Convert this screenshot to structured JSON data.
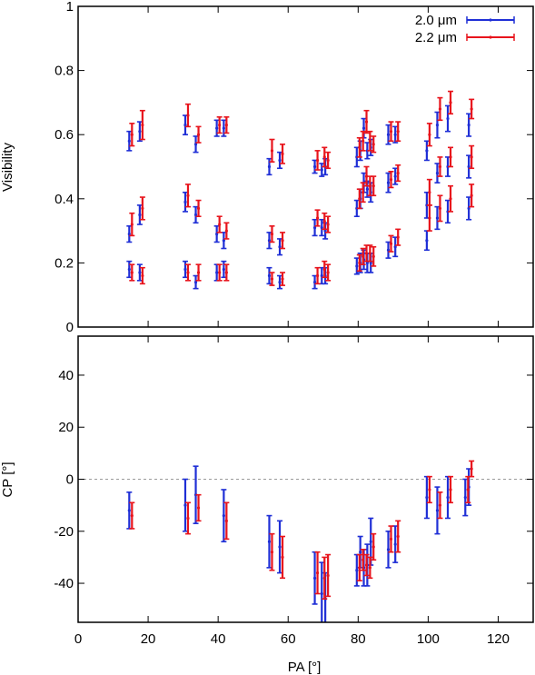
{
  "colors": {
    "series_2_0": "#1f2fd6",
    "series_2_2": "#e8141c",
    "frame": "#000000",
    "zero_line": "#9a9a9a"
  },
  "chart_data": [
    {
      "type": "scatter",
      "panel": "top",
      "ylabel": "Visibility",
      "xlabel": "",
      "xlim": [
        0,
        130
      ],
      "ylim": [
        0,
        1
      ],
      "xticks": [
        0,
        20,
        40,
        60,
        80,
        100,
        120
      ],
      "yticks": [
        0,
        0.2,
        0.4,
        0.6,
        0.8,
        1
      ],
      "ytick_labels": [
        "0",
        "0.2",
        "0.4",
        "0.6",
        "0.8",
        "1"
      ],
      "legend_position": "top-right",
      "error_bars": true,
      "series": [
        {
          "name": "2.0 μm",
          "color": "#1f2fd6",
          "points": [
            [
              15,
              0.58,
              0.03
            ],
            [
              15,
              0.29,
              0.025
            ],
            [
              15,
              0.18,
              0.025
            ],
            [
              18,
              0.61,
              0.03
            ],
            [
              18,
              0.35,
              0.03
            ],
            [
              18,
              0.17,
              0.025
            ],
            [
              31,
              0.63,
              0.03
            ],
            [
              31,
              0.39,
              0.03
            ],
            [
              31,
              0.18,
              0.025
            ],
            [
              34,
              0.57,
              0.025
            ],
            [
              34,
              0.35,
              0.025
            ],
            [
              34,
              0.14,
              0.02
            ],
            [
              40,
              0.62,
              0.025
            ],
            [
              40,
              0.29,
              0.025
            ],
            [
              40,
              0.17,
              0.025
            ],
            [
              42,
              0.62,
              0.025
            ],
            [
              42,
              0.27,
              0.025
            ],
            [
              42,
              0.18,
              0.025
            ],
            [
              55,
              0.5,
              0.025
            ],
            [
              55,
              0.27,
              0.025
            ],
            [
              55,
              0.16,
              0.025
            ],
            [
              58,
              0.52,
              0.025
            ],
            [
              58,
              0.25,
              0.025
            ],
            [
              58,
              0.14,
              0.02
            ],
            [
              68,
              0.5,
              0.02
            ],
            [
              68,
              0.31,
              0.025
            ],
            [
              68,
              0.14,
              0.02
            ],
            [
              70,
              0.49,
              0.02
            ],
            [
              70,
              0.31,
              0.025
            ],
            [
              70,
              0.16,
              0.025
            ],
            [
              71,
              0.5,
              0.025
            ],
            [
              71,
              0.3,
              0.025
            ],
            [
              71,
              0.16,
              0.025
            ],
            [
              80,
              0.53,
              0.03
            ],
            [
              80,
              0.37,
              0.025
            ],
            [
              80,
              0.19,
              0.025
            ],
            [
              81,
              0.55,
              0.03
            ],
            [
              81,
              0.4,
              0.03
            ],
            [
              81,
              0.2,
              0.03
            ],
            [
              82,
              0.62,
              0.03
            ],
            [
              82,
              0.45,
              0.03
            ],
            [
              82,
              0.21,
              0.03
            ],
            [
              83,
              0.55,
              0.025
            ],
            [
              83,
              0.43,
              0.025
            ],
            [
              83,
              0.2,
              0.03
            ],
            [
              84,
              0.56,
              0.025
            ],
            [
              84,
              0.42,
              0.03
            ],
            [
              84,
              0.2,
              0.03
            ],
            [
              89,
              0.6,
              0.03
            ],
            [
              89,
              0.45,
              0.03
            ],
            [
              89,
              0.24,
              0.025
            ],
            [
              91,
              0.6,
              0.025
            ],
            [
              91,
              0.47,
              0.025
            ],
            [
              91,
              0.25,
              0.03
            ],
            [
              100,
              0.55,
              0.03
            ],
            [
              100,
              0.38,
              0.04
            ],
            [
              100,
              0.27,
              0.03
            ],
            [
              103,
              0.63,
              0.04
            ],
            [
              103,
              0.48,
              0.03
            ],
            [
              103,
              0.34,
              0.035
            ],
            [
              106,
              0.65,
              0.04
            ],
            [
              106,
              0.5,
              0.03
            ],
            [
              106,
              0.36,
              0.035
            ],
            [
              112,
              0.63,
              0.035
            ],
            [
              112,
              0.5,
              0.035
            ],
            [
              112,
              0.37,
              0.035
            ]
          ]
        },
        {
          "name": "2.2 μm",
          "color": "#e8141c",
          "points": [
            [
              15,
              0.6,
              0.035
            ],
            [
              15,
              0.32,
              0.035
            ],
            [
              15,
              0.17,
              0.025
            ],
            [
              18,
              0.63,
              0.045
            ],
            [
              18,
              0.37,
              0.035
            ],
            [
              18,
              0.16,
              0.025
            ],
            [
              31,
              0.66,
              0.035
            ],
            [
              31,
              0.41,
              0.035
            ],
            [
              31,
              0.17,
              0.025
            ],
            [
              34,
              0.6,
              0.025
            ],
            [
              34,
              0.37,
              0.025
            ],
            [
              34,
              0.17,
              0.025
            ],
            [
              40,
              0.63,
              0.025
            ],
            [
              40,
              0.32,
              0.025
            ],
            [
              40,
              0.17,
              0.025
            ],
            [
              42,
              0.63,
              0.025
            ],
            [
              42,
              0.3,
              0.025
            ],
            [
              42,
              0.17,
              0.025
            ],
            [
              55,
              0.55,
              0.035
            ],
            [
              55,
              0.29,
              0.025
            ],
            [
              55,
              0.15,
              0.02
            ],
            [
              58,
              0.54,
              0.03
            ],
            [
              58,
              0.27,
              0.025
            ],
            [
              58,
              0.15,
              0.02
            ],
            [
              68,
              0.52,
              0.03
            ],
            [
              68,
              0.34,
              0.025
            ],
            [
              68,
              0.16,
              0.025
            ],
            [
              70,
              0.53,
              0.03
            ],
            [
              70,
              0.33,
              0.025
            ],
            [
              70,
              0.18,
              0.025
            ],
            [
              71,
              0.52,
              0.025
            ],
            [
              71,
              0.32,
              0.025
            ],
            [
              71,
              0.17,
              0.025
            ],
            [
              80,
              0.56,
              0.03
            ],
            [
              80,
              0.4,
              0.03
            ],
            [
              80,
              0.2,
              0.025
            ],
            [
              81,
              0.58,
              0.03
            ],
            [
              81,
              0.42,
              0.03
            ],
            [
              81,
              0.22,
              0.025
            ],
            [
              82,
              0.64,
              0.035
            ],
            [
              82,
              0.47,
              0.03
            ],
            [
              82,
              0.23,
              0.025
            ],
            [
              83,
              0.58,
              0.03
            ],
            [
              83,
              0.44,
              0.03
            ],
            [
              83,
              0.23,
              0.025
            ],
            [
              84,
              0.57,
              0.025
            ],
            [
              84,
              0.44,
              0.03
            ],
            [
              84,
              0.22,
              0.03
            ],
            [
              89,
              0.61,
              0.03
            ],
            [
              89,
              0.46,
              0.025
            ],
            [
              89,
              0.26,
              0.025
            ],
            [
              91,
              0.61,
              0.03
            ],
            [
              91,
              0.48,
              0.025
            ],
            [
              91,
              0.28,
              0.025
            ],
            [
              100,
              0.6,
              0.035
            ],
            [
              100,
              0.42,
              0.04
            ],
            [
              100,
              0.34,
              0.04
            ],
            [
              103,
              0.68,
              0.035
            ],
            [
              103,
              0.5,
              0.03
            ],
            [
              103,
              0.37,
              0.04
            ],
            [
              106,
              0.7,
              0.035
            ],
            [
              106,
              0.53,
              0.03
            ],
            [
              106,
              0.4,
              0.04
            ],
            [
              112,
              0.68,
              0.03
            ],
            [
              112,
              0.53,
              0.035
            ],
            [
              112,
              0.41,
              0.035
            ]
          ]
        }
      ]
    },
    {
      "type": "scatter",
      "panel": "bottom",
      "ylabel": "CP [°]",
      "xlabel": "PA [°]",
      "xlim": [
        0,
        130
      ],
      "ylim": [
        -55,
        55
      ],
      "xticks": [
        0,
        20,
        40,
        60,
        80,
        100,
        120
      ],
      "yticks": [
        -40,
        -20,
        0,
        20,
        40
      ],
      "ytick_labels": [
        "-40",
        "-20",
        "0",
        "20",
        "40"
      ],
      "zero_line": true,
      "error_bars": true,
      "series": [
        {
          "name": "2.0 μm",
          "color": "#1f2fd6",
          "points": [
            [
              15,
              -12,
              7
            ],
            [
              31,
              -10,
              10
            ],
            [
              34,
              -6,
              11
            ],
            [
              42,
              -14,
              10
            ],
            [
              55,
              -24,
              10
            ],
            [
              58,
              -26,
              10
            ],
            [
              68,
              -38,
              10
            ],
            [
              70,
              -44,
              12
            ],
            [
              71,
              -46,
              10
            ],
            [
              80,
              -35,
              6
            ],
            [
              81,
              -28,
              6
            ],
            [
              82,
              -34,
              7
            ],
            [
              83,
              -33,
              8
            ],
            [
              84,
              -24,
              9
            ],
            [
              89,
              -27,
              7
            ],
            [
              91,
              -25,
              7
            ],
            [
              100,
              -7,
              8
            ],
            [
              103,
              -12,
              9
            ],
            [
              106,
              -7,
              8
            ],
            [
              111,
              -7,
              7
            ],
            [
              112,
              -3,
              7
            ]
          ]
        },
        {
          "name": "2.2 μm",
          "color": "#e8141c",
          "points": [
            [
              15,
              -14,
              5
            ],
            [
              31,
              -15,
              6
            ],
            [
              34,
              -11,
              5
            ],
            [
              42,
              -16,
              7
            ],
            [
              55,
              -28,
              7
            ],
            [
              58,
              -30,
              8
            ],
            [
              68,
              -36,
              8
            ],
            [
              70,
              -38,
              8
            ],
            [
              71,
              -37,
              8
            ],
            [
              80,
              -34,
              5
            ],
            [
              81,
              -31,
              4
            ],
            [
              82,
              -33,
              4
            ],
            [
              83,
              -34,
              4
            ],
            [
              84,
              -26,
              5
            ],
            [
              89,
              -23,
              5
            ],
            [
              91,
              -22,
              6
            ],
            [
              100,
              -4,
              5
            ],
            [
              103,
              -10,
              5
            ],
            [
              106,
              -4,
              5
            ],
            [
              111,
              -4,
              5
            ],
            [
              112,
              4,
              3
            ]
          ]
        }
      ]
    }
  ]
}
